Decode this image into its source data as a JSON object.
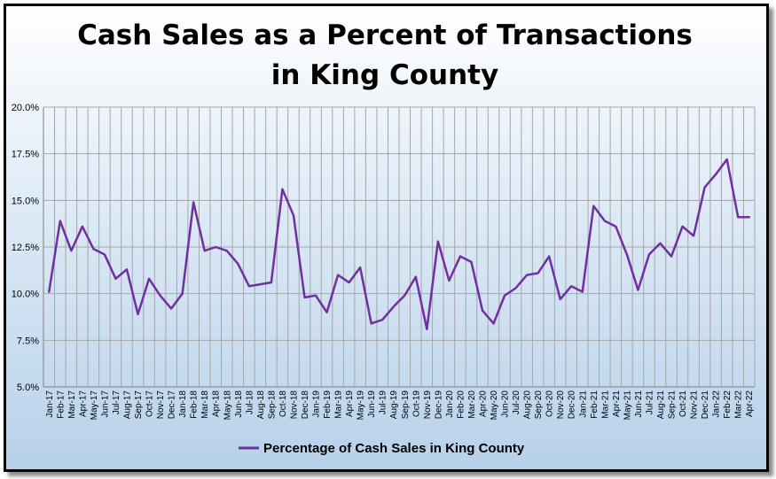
{
  "chart_data": {
    "type": "line",
    "title_lines": [
      "Cash Sales as a Percent of Transactions",
      "in King County"
    ],
    "ylim": [
      5.0,
      20.0
    ],
    "yticks": [
      "5.0%",
      "7.5%",
      "10.0%",
      "12.5%",
      "15.0%",
      "17.5%",
      "20.0%"
    ],
    "ytick_values": [
      5.0,
      7.5,
      10.0,
      12.5,
      15.0,
      17.5,
      20.0
    ],
    "grid": true,
    "legend_position": "bottom",
    "line_color": "#7030a0",
    "categories": [
      "Jan-17",
      "Feb-17",
      "Mar-17",
      "Apr-17",
      "May-17",
      "Jun-17",
      "Jul-17",
      "Aug-17",
      "Sep-17",
      "Oct-17",
      "Nov-17",
      "Dec-17",
      "Jan-18",
      "Feb-18",
      "Mar-18",
      "Apr-18",
      "May-18",
      "Jun-18",
      "Jul-18",
      "Aug-18",
      "Sep-18",
      "Oct-18",
      "Nov-18",
      "Dec-18",
      "Jan-19",
      "Feb-19",
      "Mar-19",
      "Apr-19",
      "May-19",
      "Jun-19",
      "Jul-19",
      "Aug-19",
      "Sep-19",
      "Oct-19",
      "Nov-19",
      "Dec-19",
      "Jan-20",
      "Feb-20",
      "Mar-20",
      "Apr-20",
      "May-20",
      "Jun-20",
      "Jul-20",
      "Aug-20",
      "Sep-20",
      "Oct-20",
      "Nov-20",
      "Dec-20",
      "Jan-21",
      "Feb-21",
      "Mar-21",
      "Apr-21",
      "May-21",
      "Jun-21",
      "Jul-21",
      "Aug-21",
      "Sep-21",
      "Oct-21",
      "Nov-21",
      "Dec-21",
      "Jan-22",
      "Feb-22",
      "Mar-22",
      "Apr-22"
    ],
    "series": [
      {
        "name": "Percentage of Cash Sales in King County",
        "values": [
          10.1,
          13.9,
          12.3,
          13.6,
          12.4,
          12.1,
          10.8,
          11.3,
          8.9,
          10.8,
          9.9,
          9.2,
          10.0,
          14.9,
          12.3,
          12.5,
          12.3,
          11.6,
          10.4,
          10.5,
          10.6,
          15.6,
          14.2,
          9.8,
          9.9,
          9.0,
          11.0,
          10.6,
          11.4,
          8.4,
          8.6,
          9.3,
          9.9,
          10.9,
          8.1,
          12.8,
          10.7,
          12.0,
          11.7,
          9.1,
          8.4,
          9.9,
          10.3,
          11.0,
          11.1,
          12.0,
          9.7,
          10.4,
          10.1,
          14.7,
          13.9,
          13.6,
          12.1,
          10.2,
          12.1,
          12.7,
          12.0,
          13.6,
          13.1,
          15.7,
          16.4,
          17.2,
          14.1,
          14.1
        ]
      }
    ]
  }
}
